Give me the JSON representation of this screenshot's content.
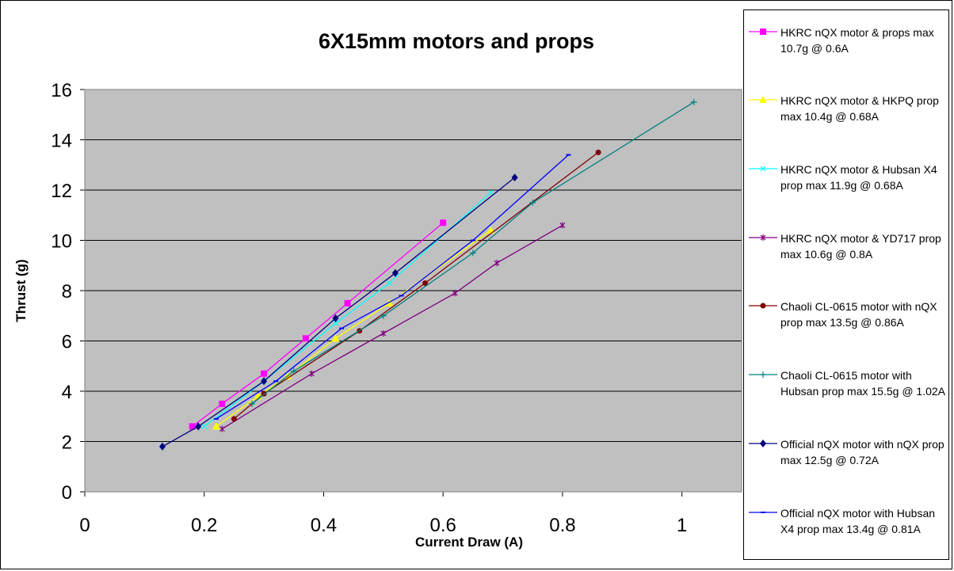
{
  "chart_data": {
    "type": "line",
    "title": "6X15mm motors and props",
    "xlabel": "Current Draw (A)",
    "ylabel": "Thrust (g)",
    "xlim": [
      0,
      1.1
    ],
    "ylim": [
      0,
      16
    ],
    "x_ticks": [
      "0",
      "0.2",
      "0.4",
      "0.6",
      "0.8",
      "1"
    ],
    "y_ticks": [
      "0",
      "2",
      "4",
      "6",
      "8",
      "10",
      "12",
      "14",
      "16"
    ],
    "plot_background": "#c0c0c0",
    "grid": "horizontal",
    "legend_position": "right",
    "series": [
      {
        "name": "HKRC nQX motor & props max 10.7g @ 0.6A",
        "color": "#ff00ff",
        "marker": "square",
        "points": [
          [
            0.18,
            2.6
          ],
          [
            0.23,
            3.5
          ],
          [
            0.3,
            4.7
          ],
          [
            0.37,
            6.1
          ],
          [
            0.44,
            7.5
          ],
          [
            0.6,
            10.7
          ]
        ]
      },
      {
        "name": "HKRC nQX motor & HKPQ prop max 10.4g @ 0.68A",
        "color": "#ffff00",
        "marker": "triangle",
        "points": [
          [
            0.22,
            2.6
          ],
          [
            0.29,
            3.8
          ],
          [
            0.34,
            4.6
          ],
          [
            0.42,
            6.1
          ],
          [
            0.51,
            7.5
          ],
          [
            0.68,
            10.4
          ]
        ]
      },
      {
        "name": "HKRC nQX motor & Hubsan X4 prop max 11.9g @ 0.68A",
        "color": "#00ffff",
        "marker": "x",
        "points": [
          [
            0.2,
            2.6
          ],
          [
            0.3,
            4.4
          ],
          [
            0.42,
            6.7
          ],
          [
            0.51,
            8.3
          ],
          [
            0.68,
            11.9
          ]
        ]
      },
      {
        "name": "HKRC nQX motor & YD717 prop max 10.6g @ 0.8A",
        "color": "#800080",
        "marker": "star",
        "points": [
          [
            0.23,
            2.5
          ],
          [
            0.38,
            4.7
          ],
          [
            0.5,
            6.3
          ],
          [
            0.62,
            7.9
          ],
          [
            0.69,
            9.1
          ],
          [
            0.8,
            10.6
          ]
        ]
      },
      {
        "name": "Chaoli CL-0615 motor with nQX prop max 13.5g @ 0.86A",
        "color": "#800000",
        "marker": "circle",
        "points": [
          [
            0.25,
            2.9
          ],
          [
            0.3,
            3.9
          ],
          [
            0.46,
            6.4
          ],
          [
            0.57,
            8.3
          ],
          [
            0.86,
            13.5
          ]
        ]
      },
      {
        "name": "Chaoli CL-0615 motor with Hubsan prop max 15.5g @ 1.02A",
        "color": "#008080",
        "marker": "plus",
        "points": [
          [
            0.28,
            3.5
          ],
          [
            0.35,
            4.8
          ],
          [
            0.5,
            7.0
          ],
          [
            0.65,
            9.5
          ],
          [
            0.75,
            11.5
          ],
          [
            1.02,
            15.5
          ]
        ]
      },
      {
        "name": "Official nQX motor with nQX prop max 12.5g @ 0.72A",
        "color": "#000080",
        "marker": "diamond",
        "points": [
          [
            0.13,
            1.8
          ],
          [
            0.19,
            2.6
          ],
          [
            0.3,
            4.4
          ],
          [
            0.42,
            6.9
          ],
          [
            0.52,
            8.7
          ],
          [
            0.72,
            12.5
          ]
        ]
      },
      {
        "name": "Official nQX motor with Hubsan X4 prop max 13.4g @ 0.81A",
        "color": "#0000ff",
        "marker": "dash",
        "points": [
          [
            0.22,
            2.9
          ],
          [
            0.32,
            4.4
          ],
          [
            0.43,
            6.5
          ],
          [
            0.53,
            7.8
          ],
          [
            0.65,
            10.0
          ],
          [
            0.81,
            13.4
          ]
        ]
      }
    ]
  }
}
